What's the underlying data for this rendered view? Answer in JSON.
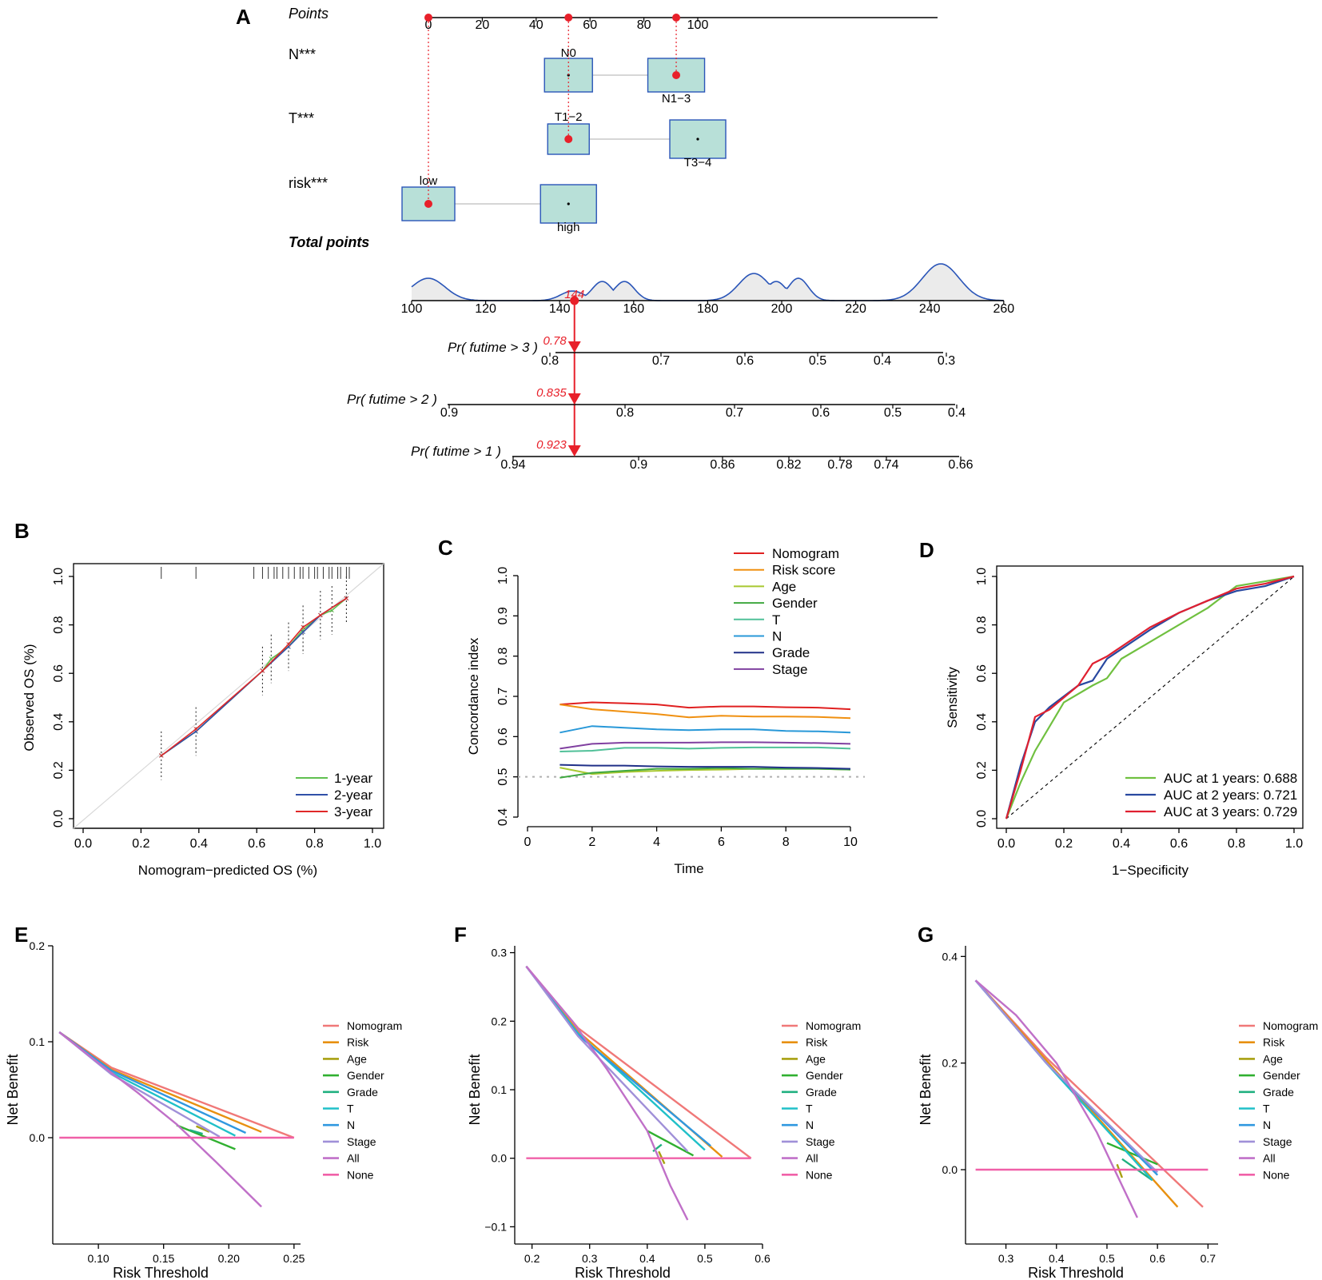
{
  "colors": {
    "red": "#e8202a",
    "box_fill": "#b8e0d8",
    "box_stroke": "#2a55b8",
    "blue_curve": "#2a55b8",
    "cal_1": "#60c050",
    "cal_2": "#3050a8",
    "cal_3": "#e02828",
    "c_nomogram": "#e02020",
    "c_risk": "#f09010",
    "c_age": "#a8c830",
    "c_gender": "#40a840",
    "c_t": "#50c098",
    "c_n": "#2898d8",
    "c_grade": "#203088",
    "c_stage": "#8040a0",
    "roc_1": "#70c040",
    "roc_2": "#2848a0",
    "roc_3": "#e02030",
    "dca_nomogram": "#f07878",
    "dca_risk": "#e89010",
    "dca_age": "#a8a010",
    "dca_gender": "#30b030",
    "dca_grade": "#20b080",
    "dca_t": "#20c0c8",
    "dca_n": "#3098e0",
    "dca_stage": "#a090d8",
    "dca_all": "#c070c8",
    "dca_none": "#f060a8"
  },
  "chart_data": [
    {
      "panel": "A",
      "type": "nomogram",
      "points_label": "Points",
      "points_ticks": [
        "0",
        "20",
        "40",
        "60",
        "80",
        "100"
      ],
      "point_markers": [
        0,
        52,
        92
      ],
      "variables": [
        {
          "label": "N***",
          "levels": [
            {
              "name": "N0",
              "points": 52
            },
            {
              "name": "N1−3",
              "points": 92
            }
          ],
          "selected": 92
        },
        {
          "label": "T***",
          "levels": [
            {
              "name": "T1−2",
              "points": 52
            },
            {
              "name": "T3−4",
              "points": 100
            }
          ],
          "selected": 52
        },
        {
          "label": "risk***",
          "levels": [
            {
              "name": "low",
              "points": 0
            },
            {
              "name": "high",
              "points": 52
            }
          ],
          "selected": 0
        }
      ],
      "total_points_label": "Total points",
      "total_ticks": [
        "100",
        "120",
        "140",
        "160",
        "180",
        "200",
        "220",
        "240",
        "260"
      ],
      "total_value": 144,
      "total_value_label": "144",
      "survival_axes": [
        {
          "label": "Pr( futime > 3 )",
          "ticks": [
            "0.8",
            "0.7",
            "0.6",
            "0.5",
            "0.4",
            "0.3"
          ],
          "value": "0.78"
        },
        {
          "label": "Pr( futime > 2 )",
          "ticks": [
            "0.9",
            "0.8",
            "0.7",
            "0.6",
            "0.5",
            "0.4"
          ],
          "value": "0.835"
        },
        {
          "label": "Pr( futime > 1 )",
          "ticks": [
            "0.94",
            "0.9",
            "0.86",
            "0.82",
            "0.78",
            "0.74",
            "0.66"
          ],
          "value": "0.923"
        }
      ]
    },
    {
      "panel": "B",
      "type": "calibration",
      "xlabel": "Nomogram−predicted OS (%)",
      "ylabel": "Observed OS (%)",
      "xlim": [
        0,
        1
      ],
      "ylim": [
        0,
        1
      ],
      "ticks": [
        "0.0",
        "0.2",
        "0.4",
        "0.6",
        "0.8",
        "1.0"
      ],
      "series": [
        {
          "name": "1-year",
          "x": [
            0.27,
            0.39,
            0.62,
            0.65,
            0.71,
            0.76,
            0.82,
            0.86,
            0.91
          ],
          "y": [
            0.26,
            0.36,
            0.61,
            0.66,
            0.71,
            0.78,
            0.84,
            0.86,
            0.91
          ]
        },
        {
          "name": "2-year",
          "x": [
            0.27,
            0.39,
            0.62,
            0.71,
            0.76,
            0.82,
            0.91
          ],
          "y": [
            0.26,
            0.36,
            0.61,
            0.71,
            0.77,
            0.84,
            0.91
          ]
        },
        {
          "name": "3-year",
          "x": [
            0.27,
            0.39,
            0.62,
            0.71,
            0.76,
            0.82,
            0.91
          ],
          "y": [
            0.26,
            0.37,
            0.61,
            0.72,
            0.79,
            0.84,
            0.91
          ]
        }
      ]
    },
    {
      "panel": "C",
      "type": "line",
      "xlabel": "Time",
      "ylabel": "Concordance index",
      "xlim": [
        0,
        10
      ],
      "ylim": [
        0.4,
        1.0
      ],
      "xticks": [
        "0",
        "2",
        "4",
        "6",
        "8",
        "10"
      ],
      "yticks": [
        "0.4",
        "0.5",
        "0.6",
        "0.7",
        "0.8",
        "0.9",
        "1.0"
      ],
      "reference": 0.5,
      "x": [
        1,
        2,
        3,
        4,
        5,
        6,
        7,
        8,
        9,
        10
      ],
      "series": [
        {
          "name": "Nomogram",
          "values": [
            0.68,
            0.685,
            0.683,
            0.68,
            0.672,
            0.675,
            0.675,
            0.673,
            0.672,
            0.668
          ]
        },
        {
          "name": "Risk score",
          "values": [
            0.68,
            0.668,
            0.662,
            0.656,
            0.648,
            0.652,
            0.65,
            0.65,
            0.649,
            0.646
          ]
        },
        {
          "name": "Age",
          "values": [
            0.523,
            0.507,
            0.512,
            0.515,
            0.517,
            0.518,
            0.52,
            0.52,
            0.52,
            0.518
          ]
        },
        {
          "name": "Gender",
          "values": [
            0.498,
            0.51,
            0.515,
            0.52,
            0.52,
            0.522,
            0.52,
            0.52,
            0.52,
            0.518
          ]
        },
        {
          "name": "T",
          "values": [
            0.563,
            0.565,
            0.572,
            0.572,
            0.57,
            0.572,
            0.573,
            0.573,
            0.573,
            0.57
          ]
        },
        {
          "name": "N",
          "values": [
            0.61,
            0.626,
            0.622,
            0.618,
            0.616,
            0.618,
            0.618,
            0.614,
            0.613,
            0.61
          ]
        },
        {
          "name": "Grade",
          "values": [
            0.53,
            0.528,
            0.528,
            0.526,
            0.525,
            0.525,
            0.525,
            0.523,
            0.522,
            0.52
          ]
        },
        {
          "name": "Stage",
          "values": [
            0.57,
            0.582,
            0.585,
            0.585,
            0.585,
            0.586,
            0.586,
            0.585,
            0.584,
            0.582
          ]
        }
      ]
    },
    {
      "panel": "D",
      "type": "roc",
      "xlabel": "1−Specificity",
      "ylabel": "Sensitivity",
      "ticks": [
        "0.0",
        "0.2",
        "0.4",
        "0.6",
        "0.8",
        "1.0"
      ],
      "series": [
        {
          "name": "AUC at 1 years: 0.688",
          "x": [
            0,
            0.05,
            0.1,
            0.2,
            0.3,
            0.35,
            0.4,
            0.5,
            0.6,
            0.7,
            0.8,
            0.9,
            1
          ],
          "y": [
            0,
            0.15,
            0.28,
            0.48,
            0.55,
            0.58,
            0.66,
            0.73,
            0.8,
            0.87,
            0.96,
            0.98,
            1
          ]
        },
        {
          "name": "AUC at 2 years: 0.721",
          "x": [
            0,
            0.05,
            0.1,
            0.15,
            0.25,
            0.3,
            0.35,
            0.5,
            0.6,
            0.7,
            0.8,
            0.9,
            1
          ],
          "y": [
            0,
            0.22,
            0.4,
            0.46,
            0.55,
            0.57,
            0.66,
            0.78,
            0.85,
            0.9,
            0.94,
            0.96,
            1
          ]
        },
        {
          "name": "AUC at 3 years: 0.729",
          "x": [
            0,
            0.05,
            0.1,
            0.15,
            0.25,
            0.3,
            0.35,
            0.5,
            0.6,
            0.7,
            0.8,
            0.9,
            1
          ],
          "y": [
            0,
            0.2,
            0.42,
            0.45,
            0.55,
            0.64,
            0.67,
            0.79,
            0.85,
            0.9,
            0.95,
            0.97,
            1
          ]
        }
      ]
    },
    {
      "panel": "E",
      "type": "dca",
      "xlabel": "Risk Threshold",
      "ylabel": "Net Benefit",
      "xlim": [
        0.065,
        0.255
      ],
      "ylim": [
        -0.1,
        0.2
      ],
      "xticks": [
        0.1,
        0.15,
        0.2,
        0.25
      ],
      "xtick_labels": [
        "0.10",
        "0.15",
        "0.20",
        "0.25"
      ],
      "yticks": [
        0,
        0.1,
        0.2
      ],
      "ytick_labels": [
        "0.0",
        "0.1",
        "0.2"
      ],
      "series": [
        {
          "name": "Nomogram",
          "x": [
            0.07,
            0.11,
            0.25
          ],
          "y": [
            0.11,
            0.073,
            0
          ]
        },
        {
          "name": "Risk",
          "x": [
            0.07,
            0.11,
            0.225
          ],
          "y": [
            0.11,
            0.071,
            0.006
          ]
        },
        {
          "name": "Age",
          "x": [
            0.175,
            0.185
          ],
          "y": [
            0.012,
            0.006
          ]
        },
        {
          "name": "Gender",
          "x": [
            0.16,
            0.205
          ],
          "y": [
            0.013,
            -0.012
          ]
        },
        {
          "name": "Grade",
          "x": [
            0.17,
            0.18
          ],
          "y": [
            0.008,
            0.004
          ]
        },
        {
          "name": "T",
          "x": [
            0.07,
            0.11,
            0.205
          ],
          "y": [
            0.11,
            0.068,
            0.002
          ]
        },
        {
          "name": "N",
          "x": [
            0.07,
            0.11,
            0.213
          ],
          "y": [
            0.11,
            0.07,
            0.005
          ]
        },
        {
          "name": "Stage",
          "x": [
            0.07,
            0.11,
            0.193
          ],
          "y": [
            0.11,
            0.066,
            0.001
          ]
        },
        {
          "name": "All",
          "x": [
            0.07,
            0.1,
            0.13,
            0.16,
            0.19,
            0.225
          ],
          "y": [
            0.11,
            0.078,
            0.047,
            0.014,
            -0.025,
            -0.072
          ]
        },
        {
          "name": "None",
          "x": [
            0.07,
            0.25
          ],
          "y": [
            0,
            0
          ]
        }
      ]
    },
    {
      "panel": "F",
      "type": "dca",
      "xlabel": "Risk Threshold",
      "ylabel": "Net Benefit",
      "xlim": [
        0.17,
        0.6
      ],
      "ylim": [
        -0.11,
        0.31
      ],
      "xticks": [
        0.2,
        0.3,
        0.4,
        0.5,
        0.6
      ],
      "xtick_labels": [
        "0.2",
        "0.3",
        "0.4",
        "0.5",
        "0.6"
      ],
      "yticks": [
        -0.1,
        0,
        0.1,
        0.2,
        0.3
      ],
      "ytick_labels": [
        "−0.1",
        "0.0",
        "0.1",
        "0.2",
        "0.3"
      ],
      "series": [
        {
          "name": "Nomogram",
          "x": [
            0.19,
            0.28,
            0.58
          ],
          "y": [
            0.28,
            0.19,
            0
          ]
        },
        {
          "name": "Risk",
          "x": [
            0.19,
            0.28,
            0.53
          ],
          "y": [
            0.28,
            0.185,
            0.002
          ]
        },
        {
          "name": "Age",
          "x": [
            0.42,
            0.43
          ],
          "y": [
            0.01,
            -0.008
          ]
        },
        {
          "name": "Gender",
          "x": [
            0.4,
            0.48
          ],
          "y": [
            0.04,
            0.004
          ]
        },
        {
          "name": "Grade",
          "x": [
            0.41,
            0.425
          ],
          "y": [
            0.01,
            0.02
          ]
        },
        {
          "name": "T",
          "x": [
            0.19,
            0.28,
            0.5
          ],
          "y": [
            0.28,
            0.182,
            0.012
          ]
        },
        {
          "name": "N",
          "x": [
            0.19,
            0.28,
            0.51
          ],
          "y": [
            0.28,
            0.18,
            0.018
          ]
        },
        {
          "name": "Stage",
          "x": [
            0.19,
            0.28,
            0.47
          ],
          "y": [
            0.28,
            0.178,
            0.01
          ]
        },
        {
          "name": "All",
          "x": [
            0.19,
            0.27,
            0.33,
            0.4,
            0.44,
            0.47
          ],
          "y": [
            0.28,
            0.2,
            0.13,
            0.04,
            -0.04,
            -0.09
          ]
        },
        {
          "name": "None",
          "x": [
            0.19,
            0.58
          ],
          "y": [
            0,
            0
          ]
        }
      ]
    },
    {
      "panel": "G",
      "type": "dca",
      "xlabel": "Risk Threshold",
      "ylabel": "Net Benefit",
      "xlim": [
        0.22,
        0.72
      ],
      "ylim": [
        -0.12,
        0.42
      ],
      "xticks": [
        0.3,
        0.4,
        0.5,
        0.6,
        0.7
      ],
      "xtick_labels": [
        "0.3",
        "0.4",
        "0.5",
        "0.6",
        "0.7"
      ],
      "yticks": [
        0,
        0.2,
        0.4
      ],
      "ytick_labels": [
        "0.0",
        "0.2",
        "0.4"
      ],
      "series": [
        {
          "name": "Nomogram",
          "x": [
            0.24,
            0.38,
            0.69
          ],
          "y": [
            0.355,
            0.21,
            -0.07
          ]
        },
        {
          "name": "Risk",
          "x": [
            0.24,
            0.38,
            0.64
          ],
          "y": [
            0.355,
            0.205,
            -0.07
          ]
        },
        {
          "name": "Age",
          "x": [
            0.52,
            0.53
          ],
          "y": [
            0.01,
            -0.015
          ]
        },
        {
          "name": "Gender",
          "x": [
            0.5,
            0.6
          ],
          "y": [
            0.05,
            0.01
          ]
        },
        {
          "name": "Grade",
          "x": [
            0.53,
            0.59
          ],
          "y": [
            0.02,
            -0.02
          ]
        },
        {
          "name": "T",
          "x": [
            0.24,
            0.38,
            0.59
          ],
          "y": [
            0.355,
            0.2,
            -0.02
          ]
        },
        {
          "name": "N",
          "x": [
            0.24,
            0.38,
            0.6
          ],
          "y": [
            0.355,
            0.2,
            -0.01
          ]
        },
        {
          "name": "Stage",
          "x": [
            0.24,
            0.38,
            0.6
          ],
          "y": [
            0.355,
            0.2,
            -0.005
          ]
        },
        {
          "name": "All",
          "x": [
            0.24,
            0.32,
            0.4,
            0.48,
            0.52,
            0.56
          ],
          "y": [
            0.355,
            0.29,
            0.2,
            0.07,
            -0.01,
            -0.09
          ]
        },
        {
          "name": "None",
          "x": [
            0.24,
            0.7
          ],
          "y": [
            0,
            0
          ]
        }
      ]
    }
  ]
}
